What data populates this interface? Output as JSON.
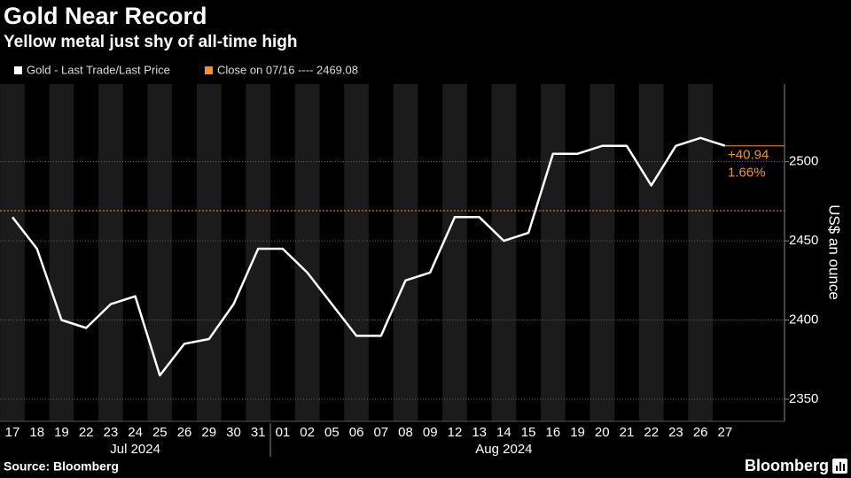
{
  "chart_data": {
    "type": "line",
    "title": "Gold Near Record",
    "subtitle": "Yellow metal just shy of all-time high",
    "y_axis_label": "US$ an ounce",
    "categories": [
      "17",
      "18",
      "19",
      "22",
      "23",
      "24",
      "25",
      "26",
      "29",
      "30",
      "31",
      "01",
      "02",
      "05",
      "06",
      "07",
      "08",
      "09",
      "12",
      "13",
      "14",
      "15",
      "16",
      "19",
      "20",
      "21",
      "22",
      "23",
      "26",
      "27"
    ],
    "month_labels": [
      "Jul 2024",
      "Aug 2024"
    ],
    "series": [
      {
        "name": "Gold - Last Trade/Last Price",
        "color": "#ffffff",
        "values": [
          2465,
          2445,
          2400,
          2395,
          2410,
          2415,
          2365,
          2385,
          2388,
          2410,
          2445,
          2445,
          2430,
          2410,
          2390,
          2390,
          2425,
          2430,
          2465,
          2465,
          2450,
          2455,
          2505,
          2505,
          2510,
          2510,
          2485,
          2510,
          2515,
          2510.02
        ]
      }
    ],
    "reference_line": {
      "name": "Close on 07/16 ---- 2469.08",
      "value": 2469.08,
      "color": "#f7931a"
    },
    "change": {
      "value": 40.94,
      "label": "+40.94"
    },
    "change_pct": {
      "value": 1.66,
      "label": "1.66%"
    },
    "ylim": [
      2336,
      2549
    ],
    "yticks": [
      2350,
      2400,
      2450,
      2500
    ],
    "grid": true,
    "source": "Source: Bloomberg",
    "brand": "Bloomberg"
  }
}
